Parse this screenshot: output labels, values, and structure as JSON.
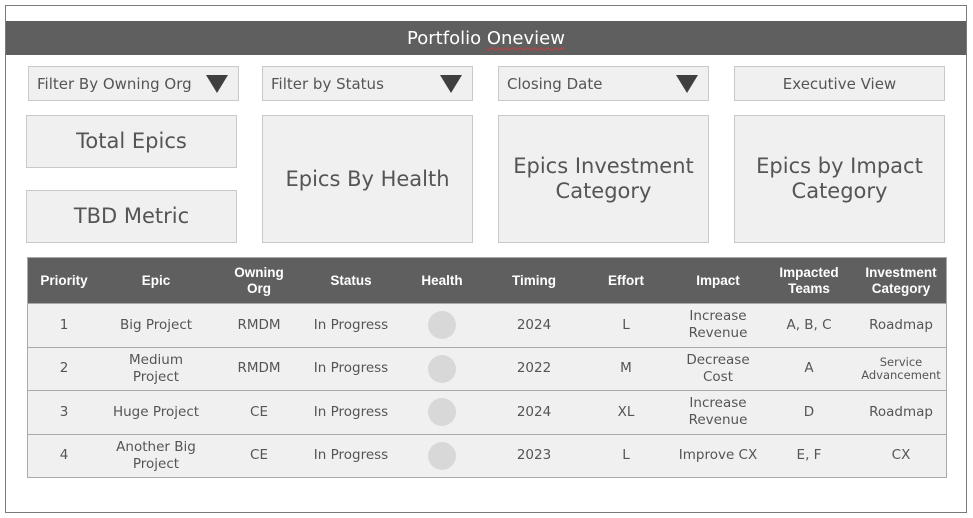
{
  "title": {
    "part1": "Portfolio",
    "part2": "Oneview"
  },
  "filters": {
    "owning_org": "Filter By Owning Org",
    "status": "Filter by Status",
    "closing_date": "Closing Date",
    "executive_view": "Executive View"
  },
  "cards": {
    "total_epics": "Total Epics",
    "tbd_metric": "TBD Metric",
    "epics_by_health": "Epics By Health",
    "investment_line1": "Epics Investment",
    "investment_line2": "Category",
    "impact_line1": "Epics by Impact",
    "impact_line2": "Category"
  },
  "table": {
    "headers": {
      "priority": "Priority",
      "epic": "Epic",
      "owning_org_1": "Owning",
      "owning_org_2": "Org",
      "status": "Status",
      "health": "Health",
      "timing": "Timing",
      "effort": "Effort",
      "impact": "Impact",
      "impacted_teams_1": "Impacted",
      "impacted_teams_2": "Teams",
      "investment_1": "Investment",
      "investment_2": "Category"
    },
    "rows": [
      {
        "priority": "1",
        "epic1": "Big Project",
        "epic2": "",
        "org": "RMDM",
        "status": "In Progress",
        "timing": "2024",
        "effort": "L",
        "impact1": "Increase",
        "impact2": "Revenue",
        "teams": "A, B, C",
        "inv1": "Roadmap",
        "inv2": ""
      },
      {
        "priority": "2",
        "epic1": "Medium",
        "epic2": "Project",
        "org": "RMDM",
        "status": "In Progress",
        "timing": "2022",
        "effort": "M",
        "impact1": "Decrease",
        "impact2": "Cost",
        "teams": "A",
        "inv1": "Service",
        "inv2": "Advancement"
      },
      {
        "priority": "3",
        "epic1": "Huge Project",
        "epic2": "",
        "org": "CE",
        "status": "In Progress",
        "timing": "2024",
        "effort": "XL",
        "impact1": "Increase",
        "impact2": "Revenue",
        "teams": "D",
        "inv1": "Roadmap",
        "inv2": ""
      },
      {
        "priority": "4",
        "epic1": "Another Big",
        "epic2": "Project",
        "org": "CE",
        "status": "In Progress",
        "timing": "2023",
        "effort": "L",
        "impact1": "Improve CX",
        "impact2": "",
        "teams": "E, F",
        "inv1": "CX",
        "inv2": ""
      }
    ]
  }
}
